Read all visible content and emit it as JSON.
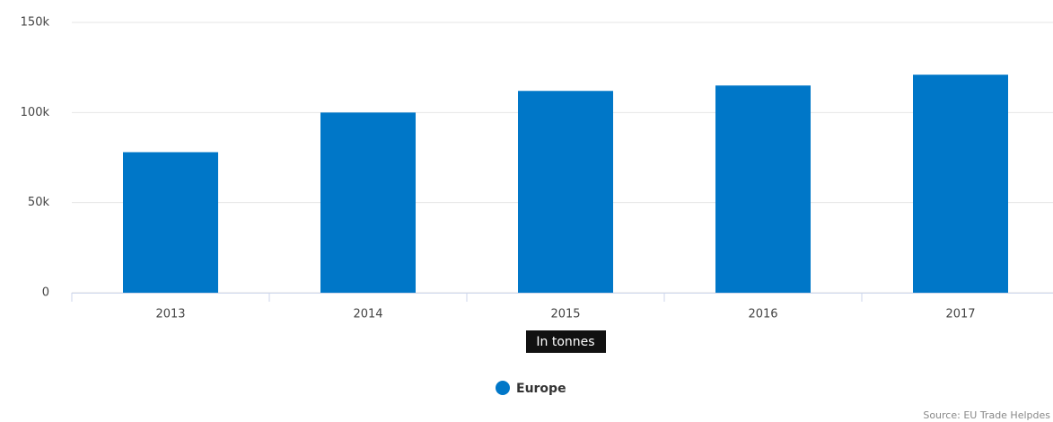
{
  "chart_data": {
    "type": "bar",
    "categories": [
      "2013",
      "2014",
      "2015",
      "2016",
      "2017"
    ],
    "series": [
      {
        "name": "Europe",
        "color": "#0077c8",
        "values": [
          78000,
          100000,
          112000,
          115000,
          121000
        ]
      }
    ],
    "x_label": "In tonnes",
    "ylim": [
      0,
      150000
    ],
    "yticks": [
      0,
      {
        "value": 50000,
        "label": "50k"
      },
      {
        "value": 100000,
        "label": "100k"
      },
      {
        "value": 150000,
        "label": "150k"
      }
    ],
    "grid": true,
    "legend": "bottom",
    "source": "Source: EU Trade Helpdes"
  }
}
